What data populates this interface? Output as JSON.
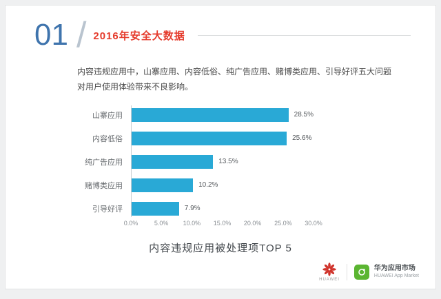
{
  "header": {
    "section_number": "01",
    "title": "2016年安全大数据"
  },
  "description": {
    "line1": "内容违规应用中，山寨应用、内容低俗、纯广告应用、赌博类应用、引导好评五大问题",
    "line2": "对用户使用体验带来不良影响。"
  },
  "chart_data": {
    "type": "bar",
    "orientation": "horizontal",
    "title": "内容违规应用被处理项TOP 5",
    "categories": [
      "山寨应用",
      "内容低俗",
      "纯广告应用",
      "赌博类应用",
      "引导好评"
    ],
    "values": [
      28.5,
      25.6,
      13.5,
      10.2,
      7.9
    ],
    "value_labels": [
      "28.5%",
      "25.6%",
      "13.5%",
      "10.2%",
      "7.9%"
    ],
    "x_ticks": [
      "0.0%",
      "5.0%",
      "10.0%",
      "15.0%",
      "20.0%",
      "25.0%",
      "30.0%"
    ],
    "xlim": [
      0,
      30
    ],
    "bar_color": "#29a9d6",
    "grid": false,
    "legend": false
  },
  "caption": "内容违规应用被处理项TOP 5",
  "footer": {
    "huawei_wordmark": "HUAWEI",
    "brand_name": "华为应用市场",
    "brand_subtitle": "HUAWEI App Market"
  },
  "colors": {
    "accent_red": "#e53b2c",
    "number_blue": "#3f74ad",
    "bar_blue": "#29a9d6",
    "huawei_red": "#d0342c",
    "appmarket_green": "#5bb531"
  }
}
